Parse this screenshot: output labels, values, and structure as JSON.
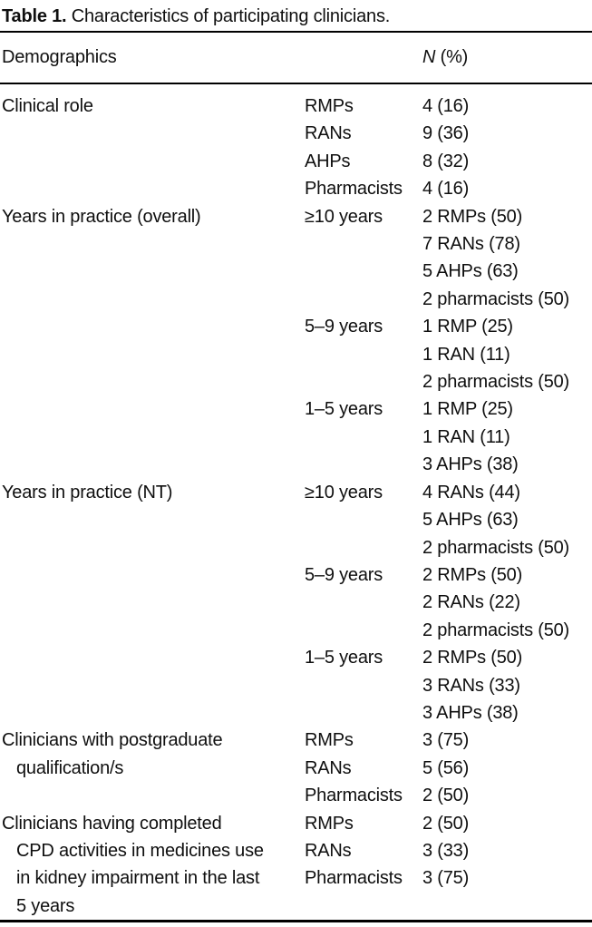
{
  "title": {
    "label": "Table 1.",
    "text": "Characteristics of participating clinicians."
  },
  "table": {
    "header": {
      "col1": "Demographics",
      "n_label": "N",
      "pct_label": "(%)"
    },
    "rows": [
      {
        "c1": "Clinical role",
        "c2": "RMPs",
        "c3": "4 (16)"
      },
      {
        "c2": "RANs",
        "c3": "9 (36)"
      },
      {
        "c2": "AHPs",
        "c3": "8 (32)"
      },
      {
        "c2": "Pharmacists",
        "c3": "4 (16)"
      },
      {
        "c1": "Years in practice (overall)",
        "c2": "≥10 years",
        "c3": "2 RMPs (50)"
      },
      {
        "c3": "7 RANs (78)"
      },
      {
        "c3": "5 AHPs (63)"
      },
      {
        "c3": "2 pharmacists (50)"
      },
      {
        "c2": "5–9 years",
        "c3": "1 RMP (25)"
      },
      {
        "c3": "1 RAN (11)"
      },
      {
        "c3": "2 pharmacists (50)"
      },
      {
        "c2": "1–5 years",
        "c3": "1 RMP (25)"
      },
      {
        "c3": "1 RAN (11)"
      },
      {
        "c3": "3 AHPs (38)"
      },
      {
        "c1": "Years in practice (NT)",
        "c2": "≥10 years",
        "c3": "4 RANs (44)"
      },
      {
        "c3": "5 AHPs (63)"
      },
      {
        "c3": "2 pharmacists (50)"
      },
      {
        "c2": "5–9 years",
        "c3": "2 RMPs (50)"
      },
      {
        "c3": "2 RANs (22)"
      },
      {
        "c3": "2 pharmacists (50)"
      },
      {
        "c2": "1–5 years",
        "c3": "2 RMPs (50)"
      },
      {
        "c3": "3 RANs (33)"
      },
      {
        "c3": "3 AHPs (38)"
      },
      {
        "c1": "Clinicians with postgraduate",
        "c2": "RMPs",
        "c3": "3 (75)"
      },
      {
        "c1": "qualification/s",
        "indent": true,
        "c2": "RANs",
        "c3": "5 (56)"
      },
      {
        "c2": "Pharmacists",
        "c3": "2 (50)"
      },
      {
        "c1": "Clinicians having completed",
        "c2": "RMPs",
        "c3": "2 (50)"
      },
      {
        "c1": "CPD activities in medicines use",
        "indent": true,
        "c2": "RANs",
        "c3": "3 (33)"
      },
      {
        "c1": "in kidney impairment in the last",
        "indent": true,
        "c2": "Pharmacists",
        "c3": "3 (75)"
      },
      {
        "c1": "5 years",
        "indent": true
      }
    ]
  }
}
